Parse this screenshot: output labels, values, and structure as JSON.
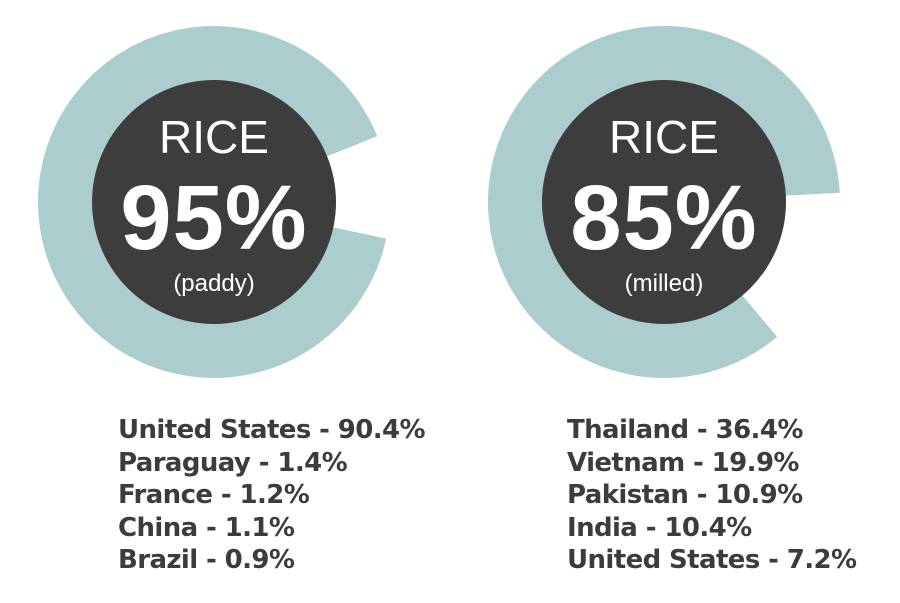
{
  "colors": {
    "ring": "#abcdce",
    "core": "#3d3d3d",
    "text": "#3c3c3c"
  },
  "chart_data": [
    {
      "type": "pie",
      "label": "RICE",
      "value_label": "95%",
      "sublabel": "(paddy)",
      "share": 95,
      "countries": [
        {
          "name": "United States",
          "value": 90.4,
          "text": "United States - 90.4%"
        },
        {
          "name": "Paraguay",
          "value": 1.4,
          "text": "Paraguay - 1.4%"
        },
        {
          "name": "France",
          "value": 1.2,
          "text": "France - 1.2%"
        },
        {
          "name": "China",
          "value": 1.1,
          "text": "China - 1.1%"
        },
        {
          "name": "Brazil",
          "value": 0.9,
          "text": "Brazil - 0.9%"
        }
      ]
    },
    {
      "type": "pie",
      "label": "RICE",
      "value_label": "85%",
      "sublabel": "(milled)",
      "share": 85,
      "countries": [
        {
          "name": "Thailand",
          "value": 36.4,
          "text": "Thailand - 36.4%"
        },
        {
          "name": "Vietnam",
          "value": 19.9,
          "text": "Vietnam - 19.9%"
        },
        {
          "name": "Pakistan",
          "value": 10.9,
          "text": "Pakistan - 10.9%"
        },
        {
          "name": "India",
          "value": 10.4,
          "text": "India - 10.4%"
        },
        {
          "name": "United States",
          "value": 7.2,
          "text": "United States - 7.2%"
        }
      ]
    }
  ]
}
